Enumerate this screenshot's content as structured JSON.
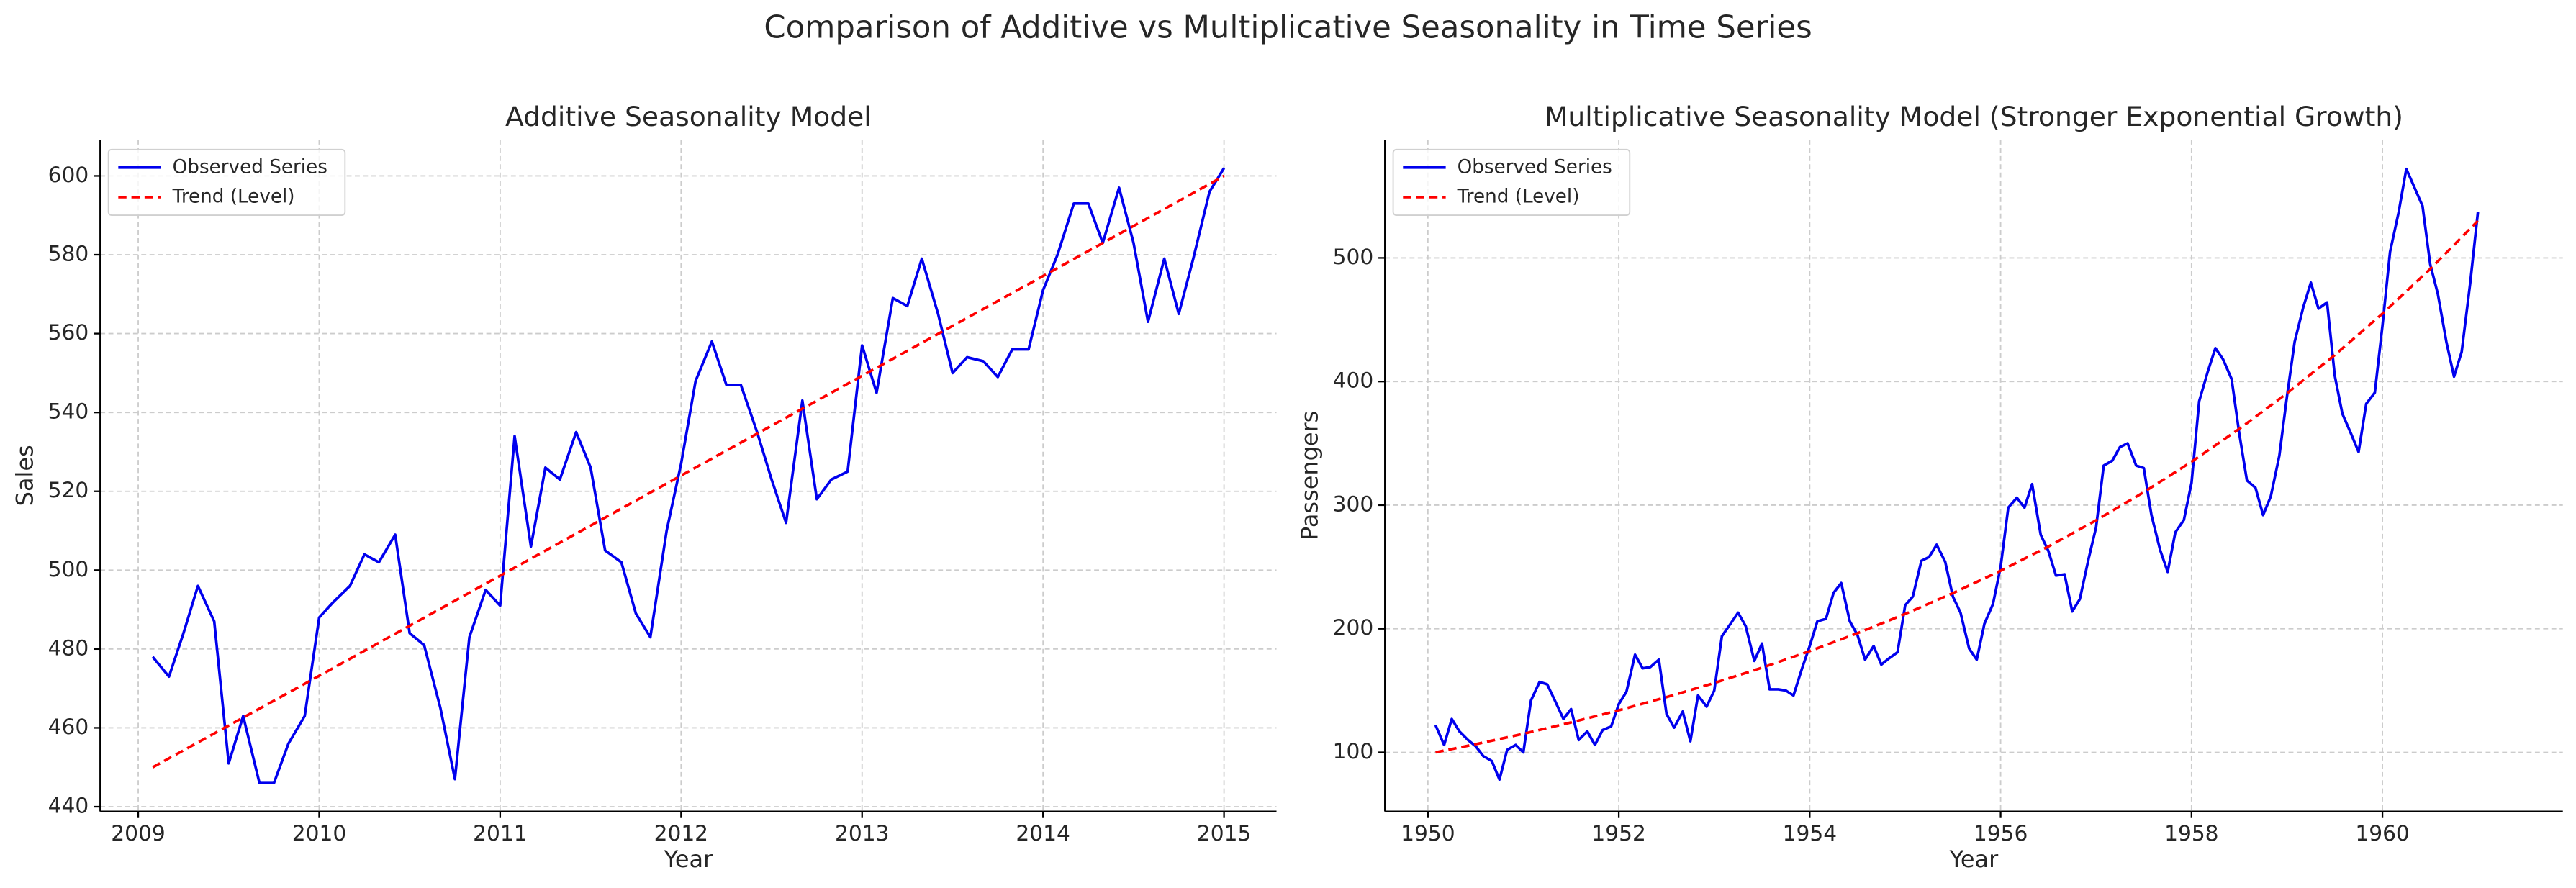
{
  "title": "Comparison of Additive vs Multiplicative Seasonality in Time Series",
  "chart_data": [
    {
      "type": "line",
      "title": "Additive Seasonality Model",
      "xlabel": "Year",
      "ylabel": "Sales",
      "grid": true,
      "legend": "upper left",
      "xlim": [
        2008.79,
        2015.29
      ],
      "ylim": [
        438.8,
        609.2
      ],
      "xticks": [
        2009,
        2010,
        2011,
        2012,
        2013,
        2014,
        2015
      ],
      "yticks": [
        440,
        460,
        480,
        500,
        520,
        540,
        560,
        580,
        600
      ],
      "x": [
        2009.08,
        2009.17,
        2009.25,
        2009.33,
        2009.42,
        2009.5,
        2009.58,
        2009.67,
        2009.75,
        2009.83,
        2009.92,
        2010.0,
        2010.08,
        2010.17,
        2010.25,
        2010.33,
        2010.42,
        2010.5,
        2010.58,
        2010.67,
        2010.75,
        2010.83,
        2010.92,
        2011.0,
        2011.08,
        2011.17,
        2011.25,
        2011.33,
        2011.42,
        2011.5,
        2011.58,
        2011.67,
        2011.75,
        2011.83,
        2011.92,
        2012.0,
        2012.08,
        2012.17,
        2012.25,
        2012.33,
        2012.42,
        2012.5,
        2012.58,
        2012.67,
        2012.75,
        2012.83,
        2012.92,
        2013.0,
        2013.08,
        2013.17,
        2013.25,
        2013.33,
        2013.42,
        2013.5,
        2013.58,
        2013.67,
        2013.75,
        2013.83,
        2013.92,
        2014.0,
        2014.08,
        2014.17,
        2014.25,
        2014.33,
        2014.42,
        2014.5,
        2014.58,
        2014.67,
        2014.75,
        2014.83,
        2014.92,
        2015.0
      ],
      "series": [
        {
          "name": "Observed Series",
          "color": "#0000ee",
          "style": "solid",
          "values": [
            478,
            473,
            484,
            496,
            487,
            451,
            463,
            446,
            446,
            456,
            463,
            488,
            492,
            496,
            504,
            502,
            509,
            484,
            481,
            465,
            447,
            483,
            495,
            491,
            534,
            506,
            526,
            523,
            535,
            526,
            505,
            502,
            489,
            483,
            510,
            527,
            548,
            558,
            547,
            547,
            535,
            523,
            512,
            543,
            518,
            523,
            525,
            557,
            545,
            569,
            567,
            579,
            565,
            550,
            554,
            553,
            549,
            556,
            556,
            571,
            580,
            593,
            593,
            583,
            597,
            583,
            563,
            579,
            565,
            579,
            596,
            602
          ]
        },
        {
          "name": "Trend (Level)",
          "color": "#ff0000",
          "style": "dashed",
          "x": [
            2009.08,
            2010,
            2011,
            2012,
            2013,
            2014,
            2015
          ],
          "values": [
            450,
            473.2,
            498.6,
            524.0,
            549.3,
            574.6,
            600
          ]
        }
      ]
    },
    {
      "type": "line",
      "title": "Multiplicative Seasonality Model (Stronger Exponential Growth)",
      "xlabel": "Year",
      "ylabel": "Passengers",
      "grid": true,
      "legend": "upper left",
      "xlim": [
        1949.55,
        1961.89
      ],
      "ylim": [
        52.2,
        595.7
      ],
      "xticks": [
        1950,
        1952,
        1954,
        1956,
        1958,
        1960
      ],
      "yticks": [
        100,
        200,
        300,
        400,
        500
      ],
      "x": [
        1950.08,
        1950.17,
        1950.25,
        1950.33,
        1950.42,
        1950.5,
        1950.58,
        1950.67,
        1950.75,
        1950.83,
        1950.92,
        1951.0,
        1951.08,
        1951.17,
        1951.25,
        1951.33,
        1951.42,
        1951.5,
        1951.58,
        1951.67,
        1951.75,
        1951.83,
        1951.92,
        1952.0,
        1952.08,
        1952.17,
        1952.25,
        1952.33,
        1952.42,
        1952.5,
        1952.58,
        1952.67,
        1952.75,
        1952.83,
        1952.92,
        1953.0,
        1953.08,
        1953.17,
        1953.25,
        1953.33,
        1953.42,
        1953.5,
        1953.58,
        1953.67,
        1953.75,
        1953.83,
        1953.92,
        1954.0,
        1954.08,
        1954.17,
        1954.25,
        1954.33,
        1954.42,
        1954.5,
        1954.58,
        1954.67,
        1954.75,
        1954.83,
        1954.92,
        1955.0,
        1955.08,
        1955.17,
        1955.25,
        1955.33,
        1955.42,
        1955.5,
        1955.58,
        1955.67,
        1955.75,
        1955.83,
        1955.92,
        1956.0,
        1956.08,
        1956.17,
        1956.25,
        1956.33,
        1956.42,
        1956.5,
        1956.58,
        1956.67,
        1956.75,
        1956.83,
        1956.92,
        1957.0,
        1957.08,
        1957.17,
        1957.25,
        1957.33,
        1957.42,
        1957.5,
        1957.58,
        1957.67,
        1957.75,
        1957.83,
        1957.92,
        1958.0,
        1958.08,
        1958.17,
        1958.25,
        1958.33,
        1958.42,
        1958.5,
        1958.58,
        1958.67,
        1958.75,
        1958.83,
        1958.92,
        1959.0,
        1959.08,
        1959.17,
        1959.25,
        1959.33,
        1959.42,
        1959.5,
        1959.58,
        1959.67,
        1959.75,
        1959.83,
        1959.92,
        1960.0,
        1960.08,
        1960.17,
        1960.25,
        1960.33,
        1960.42,
        1960.5,
        1960.58,
        1960.67,
        1960.75,
        1960.83,
        1960.92,
        1961.0
      ],
      "series": [
        {
          "name": "Observed Series",
          "color": "#0000ee",
          "style": "solid",
          "values": [
            122,
            106,
            127,
            117,
            110,
            105,
            97,
            93,
            78,
            102,
            106,
            100,
            142,
            157,
            155,
            142,
            127,
            135,
            110,
            117,
            106,
            118,
            121,
            139,
            149,
            179,
            168,
            169,
            175,
            131,
            120,
            133,
            109,
            146,
            137,
            150,
            194,
            204,
            213,
            202,
            174,
            188,
            151,
            151,
            150,
            146,
            168,
            186,
            206,
            208,
            229,
            237,
            206,
            195,
            175,
            186,
            171,
            176,
            181,
            219,
            226,
            255,
            258,
            268,
            254,
            226,
            213,
            184,
            175,
            204,
            220,
            250,
            298,
            306,
            298,
            317,
            276,
            263,
            243,
            244,
            214,
            224,
            256,
            282,
            332,
            336,
            347,
            350,
            332,
            330,
            292,
            264,
            246,
            278,
            288,
            318,
            384,
            408,
            427,
            418,
            402,
            358,
            320,
            314,
            292,
            307,
            340,
            388,
            432,
            460,
            480,
            459,
            464,
            405,
            374,
            358,
            343,
            382,
            391,
            445,
            505,
            537,
            572,
            558,
            542,
            495,
            471,
            432,
            404,
            424,
            480,
            537
          ]
        },
        {
          "name": "Trend (Level)",
          "color": "#ff0000",
          "style": "dashed",
          "x": [
            1950.08,
            1950.5,
            1951,
            1951.5,
            1952,
            1952.5,
            1953,
            1953.5,
            1954,
            1954.5,
            1955,
            1955.5,
            1956,
            1956.5,
            1957,
            1957.5,
            1958,
            1958.5,
            1959,
            1959.5,
            1960,
            1960.5,
            1961
          ],
          "values": [
            100,
            106.6,
            115.0,
            124.2,
            134.0,
            144.7,
            156.1,
            168.5,
            181.9,
            196.4,
            212.0,
            228.8,
            246.9,
            266.5,
            287.7,
            310.5,
            335.1,
            361.7,
            390.5,
            421.4,
            454.9,
            491.0,
            530.0
          ]
        }
      ]
    }
  ]
}
